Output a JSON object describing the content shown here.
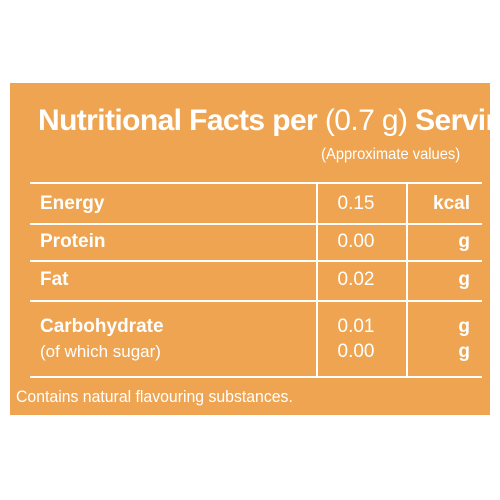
{
  "label": {
    "title_bold_1": "Nutritional Facts per",
    "title_paren": "(0.7 g)",
    "title_bold_2": "Serving",
    "subtitle": "(Approximate values)",
    "rows": [
      {
        "name": "Energy",
        "value": "0.15",
        "unit": "kcal"
      },
      {
        "name": "Protein",
        "value": "0.00",
        "unit": "g"
      },
      {
        "name": "Fat",
        "value": "0.02",
        "unit": "g"
      },
      {
        "name": "Carbohydrate",
        "value": "0.01",
        "unit": "g"
      },
      {
        "name": "(of which sugar)",
        "value": "0.00",
        "unit": "g"
      }
    ],
    "footer": "Contains natural flavouring substances.",
    "colors": {
      "background": "#EEA450",
      "text": "#FFFFFF"
    }
  }
}
